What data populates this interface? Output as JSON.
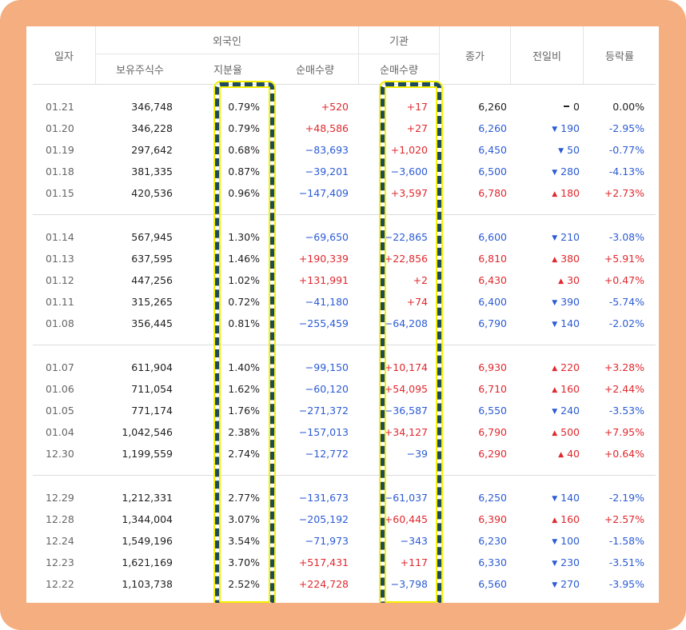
{
  "header": {
    "date": "일자",
    "foreign": "외국인",
    "institution": "기관",
    "holdings": "보유주식수",
    "ratio": "지분율",
    "foreign_net": "순매수량",
    "inst_net": "순매수량",
    "close": "종가",
    "change": "전일비",
    "rate": "등락률"
  },
  "colors": {
    "up": "#e0282e",
    "down": "#2b5bd4",
    "frame": "#f4ae7f",
    "highlight_border": "#1e4a5e",
    "highlight_glow": "#f4f000"
  },
  "rows": [
    {
      "date": "01.21",
      "holdings": "346,748",
      "ratio": "0.79%",
      "fnet": "+520",
      "fdir": "up",
      "inet": "+17",
      "idir": "up",
      "close": "6,260",
      "cdir": "flat",
      "chg": "0",
      "chgdir": "flat",
      "rate": "0.00%",
      "rdir": "flat"
    },
    {
      "date": "01.20",
      "holdings": "346,228",
      "ratio": "0.79%",
      "fnet": "+48,586",
      "fdir": "up",
      "inet": "+27",
      "idir": "up",
      "close": "6,260",
      "cdir": "down",
      "chg": "190",
      "chgdir": "down",
      "rate": "-2.95%",
      "rdir": "down"
    },
    {
      "date": "01.19",
      "holdings": "297,642",
      "ratio": "0.68%",
      "fnet": "−83,693",
      "fdir": "down",
      "inet": "+1,020",
      "idir": "up",
      "close": "6,450",
      "cdir": "down",
      "chg": "50",
      "chgdir": "down",
      "rate": "-0.77%",
      "rdir": "down"
    },
    {
      "date": "01.18",
      "holdings": "381,335",
      "ratio": "0.87%",
      "fnet": "−39,201",
      "fdir": "down",
      "inet": "−3,600",
      "idir": "down",
      "close": "6,500",
      "cdir": "down",
      "chg": "280",
      "chgdir": "down",
      "rate": "-4.13%",
      "rdir": "down"
    },
    {
      "date": "01.15",
      "holdings": "420,536",
      "ratio": "0.96%",
      "fnet": "−147,409",
      "fdir": "down",
      "inet": "+3,597",
      "idir": "up",
      "close": "6,780",
      "cdir": "up",
      "chg": "180",
      "chgdir": "up",
      "rate": "+2.73%",
      "rdir": "up"
    },
    {
      "date": "01.14",
      "holdings": "567,945",
      "ratio": "1.30%",
      "fnet": "−69,650",
      "fdir": "down",
      "inet": "−22,865",
      "idir": "down",
      "close": "6,600",
      "cdir": "down",
      "chg": "210",
      "chgdir": "down",
      "rate": "-3.08%",
      "rdir": "down"
    },
    {
      "date": "01.13",
      "holdings": "637,595",
      "ratio": "1.46%",
      "fnet": "+190,339",
      "fdir": "up",
      "inet": "+22,856",
      "idir": "up",
      "close": "6,810",
      "cdir": "up",
      "chg": "380",
      "chgdir": "up",
      "rate": "+5.91%",
      "rdir": "up"
    },
    {
      "date": "01.12",
      "holdings": "447,256",
      "ratio": "1.02%",
      "fnet": "+131,991",
      "fdir": "up",
      "inet": "+2",
      "idir": "up",
      "close": "6,430",
      "cdir": "up",
      "chg": "30",
      "chgdir": "up",
      "rate": "+0.47%",
      "rdir": "up"
    },
    {
      "date": "01.11",
      "holdings": "315,265",
      "ratio": "0.72%",
      "fnet": "−41,180",
      "fdir": "down",
      "inet": "+74",
      "idir": "up",
      "close": "6,400",
      "cdir": "down",
      "chg": "390",
      "chgdir": "down",
      "rate": "-5.74%",
      "rdir": "down"
    },
    {
      "date": "01.08",
      "holdings": "356,445",
      "ratio": "0.81%",
      "fnet": "−255,459",
      "fdir": "down",
      "inet": "−64,208",
      "idir": "down",
      "close": "6,790",
      "cdir": "down",
      "chg": "140",
      "chgdir": "down",
      "rate": "-2.02%",
      "rdir": "down"
    },
    {
      "date": "01.07",
      "holdings": "611,904",
      "ratio": "1.40%",
      "fnet": "−99,150",
      "fdir": "down",
      "inet": "+10,174",
      "idir": "up",
      "close": "6,930",
      "cdir": "up",
      "chg": "220",
      "chgdir": "up",
      "rate": "+3.28%",
      "rdir": "up"
    },
    {
      "date": "01.06",
      "holdings": "711,054",
      "ratio": "1.62%",
      "fnet": "−60,120",
      "fdir": "down",
      "inet": "+54,095",
      "idir": "up",
      "close": "6,710",
      "cdir": "up",
      "chg": "160",
      "chgdir": "up",
      "rate": "+2.44%",
      "rdir": "up"
    },
    {
      "date": "01.05",
      "holdings": "771,174",
      "ratio": "1.76%",
      "fnet": "−271,372",
      "fdir": "down",
      "inet": "−36,587",
      "idir": "down",
      "close": "6,550",
      "cdir": "down",
      "chg": "240",
      "chgdir": "down",
      "rate": "-3.53%",
      "rdir": "down"
    },
    {
      "date": "01.04",
      "holdings": "1,042,546",
      "ratio": "2.38%",
      "fnet": "−157,013",
      "fdir": "down",
      "inet": "+34,127",
      "idir": "up",
      "close": "6,790",
      "cdir": "up",
      "chg": "500",
      "chgdir": "up",
      "rate": "+7.95%",
      "rdir": "up"
    },
    {
      "date": "12.30",
      "holdings": "1,199,559",
      "ratio": "2.74%",
      "fnet": "−12,772",
      "fdir": "down",
      "inet": "−39",
      "idir": "down",
      "close": "6,290",
      "cdir": "up",
      "chg": "40",
      "chgdir": "up",
      "rate": "+0.64%",
      "rdir": "up"
    },
    {
      "date": "12.29",
      "holdings": "1,212,331",
      "ratio": "2.77%",
      "fnet": "−131,673",
      "fdir": "down",
      "inet": "−61,037",
      "idir": "down",
      "close": "6,250",
      "cdir": "down",
      "chg": "140",
      "chgdir": "down",
      "rate": "-2.19%",
      "rdir": "down"
    },
    {
      "date": "12.28",
      "holdings": "1,344,004",
      "ratio": "3.07%",
      "fnet": "−205,192",
      "fdir": "down",
      "inet": "+60,445",
      "idir": "up",
      "close": "6,390",
      "cdir": "up",
      "chg": "160",
      "chgdir": "up",
      "rate": "+2.57%",
      "rdir": "up"
    },
    {
      "date": "12.24",
      "holdings": "1,549,196",
      "ratio": "3.54%",
      "fnet": "−71,973",
      "fdir": "down",
      "inet": "−343",
      "idir": "down",
      "close": "6,230",
      "cdir": "down",
      "chg": "100",
      "chgdir": "down",
      "rate": "-1.58%",
      "rdir": "down"
    },
    {
      "date": "12.23",
      "holdings": "1,621,169",
      "ratio": "3.70%",
      "fnet": "+517,431",
      "fdir": "up",
      "inet": "+117",
      "idir": "up",
      "close": "6,330",
      "cdir": "down",
      "chg": "230",
      "chgdir": "down",
      "rate": "-3.51%",
      "rdir": "down"
    },
    {
      "date": "12.22",
      "holdings": "1,103,738",
      "ratio": "2.52%",
      "fnet": "+224,728",
      "fdir": "up",
      "inet": "−3,798",
      "idir": "down",
      "close": "6,560",
      "cdir": "down",
      "chg": "270",
      "chgdir": "down",
      "rate": "-3.95%",
      "rdir": "down"
    }
  ]
}
